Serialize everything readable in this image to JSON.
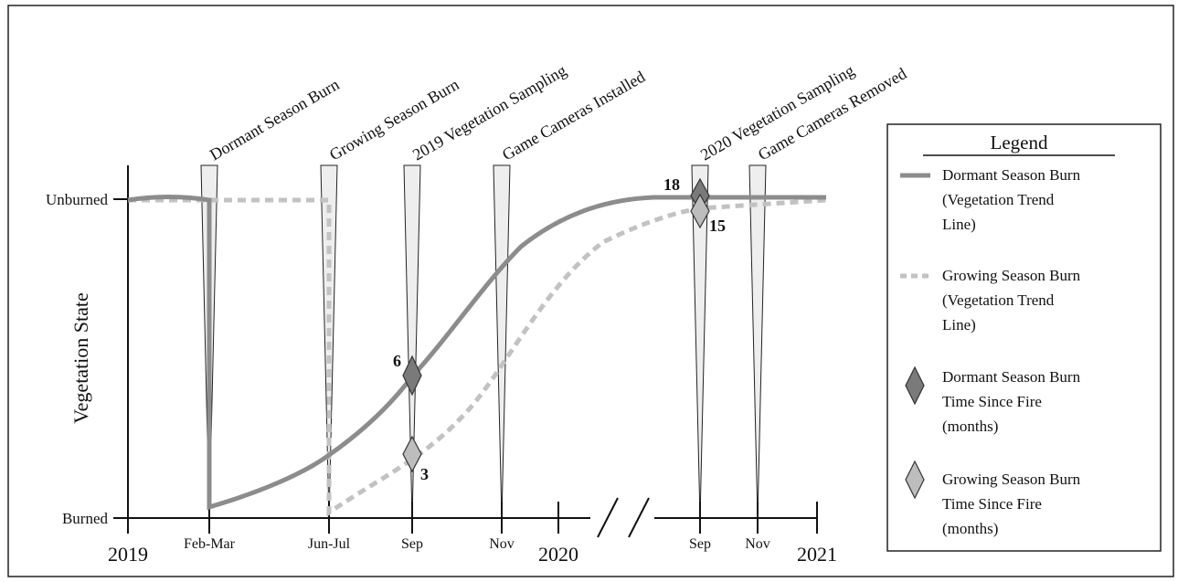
{
  "axis": {
    "y_label": "Vegetation State",
    "y_top": "Unburned",
    "y_bottom": "Burned",
    "x_ticks": [
      "Feb-Mar",
      "Jun-Jul",
      "Sep",
      "Nov",
      "Sep",
      "Nov"
    ],
    "x_years": [
      "2019",
      "2020",
      "2021"
    ]
  },
  "events": [
    "Dormant Season Burn",
    "Growing Season Burn",
    "2019 Vegetation Sampling",
    "Game Cameras Installed",
    "2020 Vegetation Sampling",
    "Game Cameras Removed"
  ],
  "markers": {
    "dormant_2019": "6",
    "growing_2019": "3",
    "dormant_2020": "18",
    "growing_2020": "15"
  },
  "legend": {
    "title": "Legend",
    "items": [
      {
        "line1": "Dormant Season Burn",
        "line2": "(Vegetation Trend",
        "line3": "Line)"
      },
      {
        "line1": "Growing Season Burn",
        "line2": "(Vegetation Trend",
        "line3": "Line)"
      },
      {
        "line1": "Dormant Season Burn",
        "line2": "Time Since Fire",
        "line3": "(months)"
      },
      {
        "line1": "Growing Season Burn",
        "line2": "Time Since Fire",
        "line3": "(months)"
      }
    ]
  },
  "colors": {
    "dormant_line": "#8c8c8c",
    "growing_line": "#c2c2c2",
    "dormant_marker": "#7a7a7a",
    "growing_marker": "#bdbdbd",
    "wedge_fill": "#eeeeee"
  }
}
